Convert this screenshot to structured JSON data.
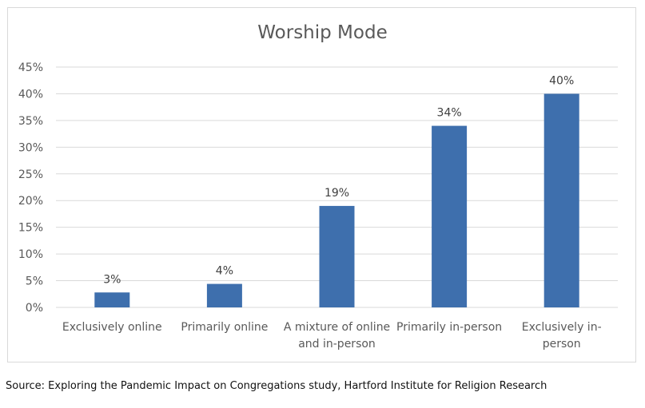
{
  "chart_data": {
    "type": "bar",
    "title": "Worship Mode",
    "categories": [
      [
        "Exclusively online"
      ],
      [
        "Primarily online"
      ],
      [
        "A mixture of online",
        "and in-person"
      ],
      [
        "Primarily in-person"
      ],
      [
        "Exclusively in-",
        "person"
      ]
    ],
    "values": [
      2.8,
      4.4,
      19,
      34,
      40
    ],
    "data_labels": [
      "3%",
      "4%",
      "19%",
      "34%",
      "40%"
    ],
    "ylim": [
      0,
      45
    ],
    "yticks": [
      "0%",
      "5%",
      "10%",
      "15%",
      "20%",
      "25%",
      "30%",
      "35%",
      "40%",
      "45%"
    ],
    "grid": true,
    "xlabel": "",
    "ylabel": "",
    "bar_color": "#3e6fad",
    "grid_color": "#d9d9d9"
  },
  "source": "Source: Exploring the Pandemic Impact on Congregations study, Hartford Institute for Religion Research"
}
